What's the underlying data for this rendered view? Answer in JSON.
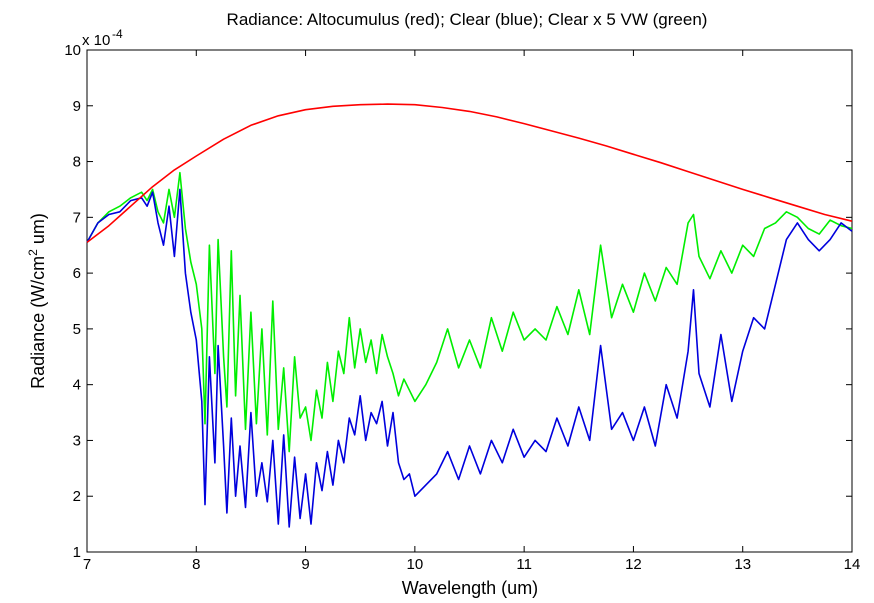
{
  "chart_data": {
    "type": "line",
    "title": "Radiance: Altocumulus (red); Clear (blue); Clear x 5 VW (green)",
    "xlabel": "Wavelength (um)",
    "ylabel_main": "Radiance (W/cm",
    "ylabel_sup": "2",
    "ylabel_tail": " um)",
    "y_multiplier_base": "x 10",
    "y_multiplier_exp": "-4",
    "xlim": [
      7,
      14
    ],
    "ylim": [
      1,
      10
    ],
    "xticks": [
      "7",
      "8",
      "9",
      "10",
      "11",
      "12",
      "13",
      "14"
    ],
    "yticks": [
      "1",
      "2",
      "3",
      "4",
      "5",
      "6",
      "7",
      "8",
      "9",
      "10"
    ],
    "grid": false,
    "colors": {
      "altocumulus": "#ff0000",
      "clear": "#0000dd",
      "clear_5vw": "#00ee00"
    },
    "series": [
      {
        "key": "altocumulus",
        "x": [
          7.0,
          7.2,
          7.4,
          7.6,
          7.8,
          8.0,
          8.25,
          8.5,
          8.75,
          9.0,
          9.25,
          9.5,
          9.75,
          10.0,
          10.25,
          10.5,
          10.75,
          11.0,
          11.25,
          11.5,
          11.75,
          12.0,
          12.25,
          12.5,
          12.75,
          13.0,
          13.25,
          13.5,
          13.75,
          14.0
        ],
        "values": [
          6.55,
          6.85,
          7.2,
          7.55,
          7.85,
          8.1,
          8.4,
          8.65,
          8.82,
          8.93,
          8.99,
          9.02,
          9.03,
          9.02,
          8.97,
          8.9,
          8.8,
          8.68,
          8.55,
          8.42,
          8.28,
          8.13,
          7.98,
          7.82,
          7.66,
          7.5,
          7.35,
          7.2,
          7.05,
          6.93
        ]
      },
      {
        "key": "clear",
        "x": [
          7.0,
          7.1,
          7.2,
          7.3,
          7.4,
          7.5,
          7.55,
          7.6,
          7.65,
          7.7,
          7.75,
          7.8,
          7.85,
          7.9,
          7.95,
          8.0,
          8.05,
          8.08,
          8.12,
          8.17,
          8.2,
          8.25,
          8.28,
          8.32,
          8.36,
          8.4,
          8.45,
          8.5,
          8.55,
          8.6,
          8.65,
          8.7,
          8.75,
          8.8,
          8.85,
          8.9,
          8.95,
          9.0,
          9.05,
          9.1,
          9.15,
          9.2,
          9.25,
          9.3,
          9.35,
          9.4,
          9.45,
          9.5,
          9.55,
          9.6,
          9.65,
          9.7,
          9.75,
          9.8,
          9.85,
          9.9,
          9.95,
          10.0,
          10.1,
          10.2,
          10.3,
          10.4,
          10.5,
          10.6,
          10.7,
          10.8,
          10.9,
          11.0,
          11.1,
          11.2,
          11.3,
          11.4,
          11.5,
          11.6,
          11.7,
          11.8,
          11.9,
          12.0,
          12.1,
          12.2,
          12.3,
          12.4,
          12.5,
          12.55,
          12.6,
          12.7,
          12.8,
          12.9,
          13.0,
          13.1,
          13.2,
          13.3,
          13.4,
          13.5,
          13.6,
          13.7,
          13.8,
          13.9,
          14.0
        ],
        "values": [
          6.55,
          6.9,
          7.05,
          7.1,
          7.3,
          7.35,
          7.2,
          7.45,
          6.9,
          6.5,
          7.2,
          6.3,
          7.5,
          6.0,
          5.3,
          4.8,
          3.7,
          1.85,
          4.5,
          2.6,
          4.7,
          2.9,
          1.7,
          3.4,
          2.0,
          2.9,
          1.8,
          3.5,
          2.0,
          2.6,
          1.9,
          3.0,
          1.5,
          3.1,
          1.45,
          2.7,
          1.6,
          2.4,
          1.5,
          2.6,
          2.1,
          2.8,
          2.2,
          3.0,
          2.6,
          3.4,
          3.1,
          3.8,
          3.0,
          3.5,
          3.3,
          3.7,
          2.9,
          3.5,
          2.6,
          2.3,
          2.4,
          2.0,
          2.2,
          2.4,
          2.8,
          2.3,
          2.9,
          2.4,
          3.0,
          2.6,
          3.2,
          2.7,
          3.0,
          2.8,
          3.4,
          2.9,
          3.6,
          3.0,
          4.7,
          3.2,
          3.5,
          3.0,
          3.6,
          2.9,
          4.0,
          3.4,
          4.6,
          5.7,
          4.2,
          3.6,
          4.9,
          3.7,
          4.6,
          5.2,
          5.0,
          5.8,
          6.6,
          6.9,
          6.6,
          6.4,
          6.6,
          6.9,
          6.75
        ]
      },
      {
        "key": "clear_5vw",
        "x": [
          7.0,
          7.1,
          7.2,
          7.3,
          7.4,
          7.5,
          7.55,
          7.6,
          7.65,
          7.7,
          7.75,
          7.8,
          7.85,
          7.9,
          7.95,
          8.0,
          8.05,
          8.08,
          8.12,
          8.17,
          8.2,
          8.25,
          8.28,
          8.32,
          8.36,
          8.4,
          8.45,
          8.5,
          8.55,
          8.6,
          8.65,
          8.7,
          8.75,
          8.8,
          8.85,
          8.9,
          8.95,
          9.0,
          9.05,
          9.1,
          9.15,
          9.2,
          9.25,
          9.3,
          9.35,
          9.4,
          9.45,
          9.5,
          9.55,
          9.6,
          9.65,
          9.7,
          9.75,
          9.8,
          9.85,
          9.9,
          9.95,
          10.0,
          10.1,
          10.2,
          10.3,
          10.4,
          10.5,
          10.6,
          10.7,
          10.8,
          10.9,
          11.0,
          11.1,
          11.2,
          11.3,
          11.4,
          11.5,
          11.6,
          11.7,
          11.8,
          11.9,
          12.0,
          12.1,
          12.2,
          12.3,
          12.4,
          12.5,
          12.55,
          12.6,
          12.7,
          12.8,
          12.9,
          13.0,
          13.1,
          13.2,
          13.3,
          13.4,
          13.5,
          13.6,
          13.7,
          13.8,
          13.9,
          14.0
        ],
        "values": [
          6.55,
          6.9,
          7.1,
          7.2,
          7.35,
          7.45,
          7.3,
          7.5,
          7.1,
          6.9,
          7.5,
          7.0,
          7.8,
          6.8,
          6.2,
          5.8,
          5.0,
          3.3,
          6.5,
          4.2,
          6.6,
          4.5,
          3.6,
          6.4,
          3.8,
          5.6,
          3.2,
          5.3,
          3.3,
          5.0,
          3.1,
          5.5,
          3.2,
          4.3,
          2.8,
          4.5,
          3.4,
          3.6,
          3.0,
          3.9,
          3.4,
          4.4,
          3.7,
          4.6,
          4.2,
          5.2,
          4.3,
          5.0,
          4.4,
          4.8,
          4.2,
          4.9,
          4.5,
          4.2,
          3.8,
          4.1,
          3.9,
          3.7,
          4.0,
          4.4,
          5.0,
          4.3,
          4.8,
          4.3,
          5.2,
          4.6,
          5.3,
          4.8,
          5.0,
          4.8,
          5.4,
          4.9,
          5.7,
          4.9,
          6.5,
          5.2,
          5.8,
          5.3,
          6.0,
          5.5,
          6.1,
          5.8,
          6.9,
          7.05,
          6.3,
          5.9,
          6.4,
          6.0,
          6.5,
          6.3,
          6.8,
          6.9,
          7.1,
          7.0,
          6.8,
          6.7,
          6.95,
          6.85,
          6.8
        ]
      }
    ]
  }
}
